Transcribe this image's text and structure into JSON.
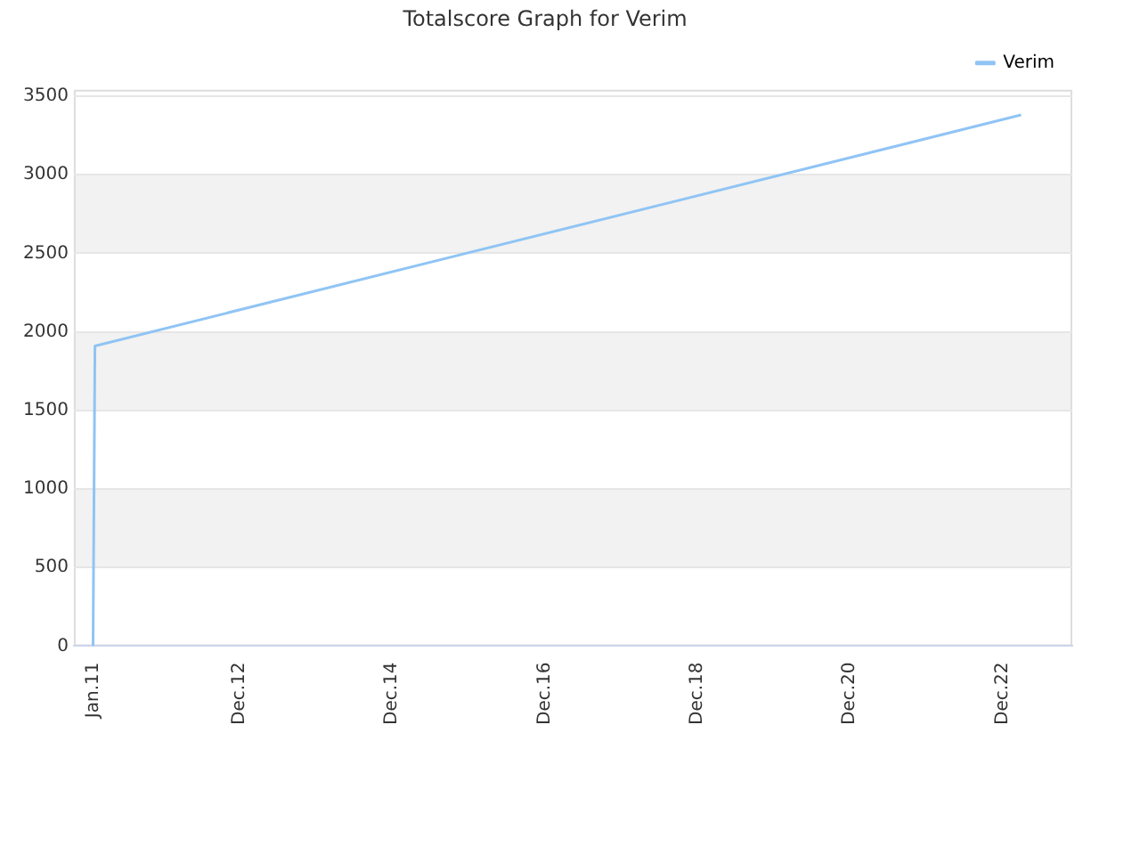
{
  "chart_data": {
    "type": "line",
    "title": "Totalscore Graph for Verim",
    "x": [
      "2011-01-01",
      "2011-01-10",
      "2023-03-01"
    ],
    "series": [
      {
        "name": "Verim",
        "color": "#90c4f4",
        "values": [
          0,
          1910,
          3380
        ]
      }
    ],
    "xlim": [
      "2010-10-01",
      "2023-11-01"
    ],
    "xticks": [
      {
        "value": "2011-01-01",
        "label": "Jan.11"
      },
      {
        "value": "2012-12-01",
        "label": "Dec.12"
      },
      {
        "value": "2014-12-01",
        "label": "Dec.14"
      },
      {
        "value": "2016-12-01",
        "label": "Dec.16"
      },
      {
        "value": "2018-12-01",
        "label": "Dec.18"
      },
      {
        "value": "2020-12-01",
        "label": "Dec.20"
      },
      {
        "value": "2022-12-01",
        "label": "Dec.22"
      }
    ],
    "ylim": [
      0,
      3540
    ],
    "yticks": [
      0,
      500,
      1000,
      1500,
      2000,
      2500,
      3000,
      3500
    ],
    "bands": [
      {
        "axis": "y",
        "from": 500,
        "to": 1000,
        "color": "#f2f2f2"
      },
      {
        "axis": "y",
        "from": 1500,
        "to": 2000,
        "color": "#f2f2f2"
      },
      {
        "axis": "y",
        "from": 2500,
        "to": 3000,
        "color": "#f2f2f2"
      }
    ],
    "grid": "y",
    "legend": "top right",
    "marker": "none",
    "line_style": "solid"
  }
}
